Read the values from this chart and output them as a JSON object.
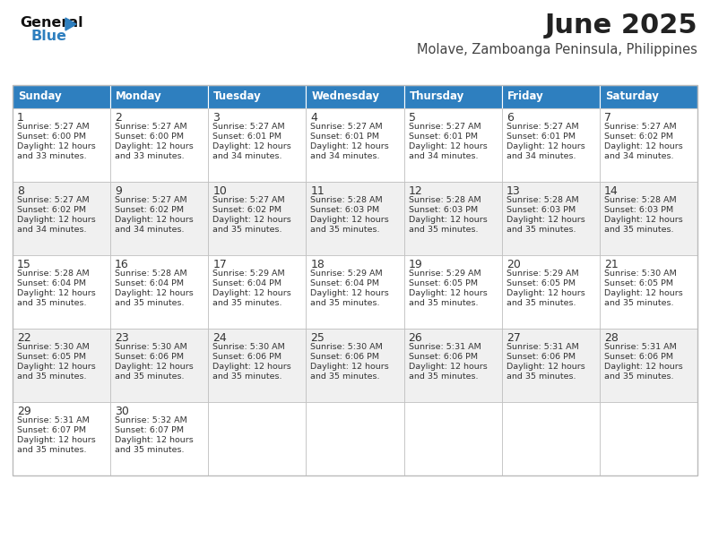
{
  "title": "June 2025",
  "subtitle": "Molave, Zamboanga Peninsula, Philippines",
  "header_color": "#2E7FBF",
  "header_text_color": "#FFFFFF",
  "cell_bg_even": "#F0F0F0",
  "cell_bg_odd": "#FFFFFF",
  "border_color": "#BBBBBB",
  "text_color": "#333333",
  "days_of_week": [
    "Sunday",
    "Monday",
    "Tuesday",
    "Wednesday",
    "Thursday",
    "Friday",
    "Saturday"
  ],
  "weeks": [
    [
      {
        "day": "1",
        "sunrise": "5:27 AM",
        "sunset": "6:00 PM",
        "daylight_suffix": "33 minutes."
      },
      {
        "day": "2",
        "sunrise": "5:27 AM",
        "sunset": "6:00 PM",
        "daylight_suffix": "33 minutes."
      },
      {
        "day": "3",
        "sunrise": "5:27 AM",
        "sunset": "6:01 PM",
        "daylight_suffix": "34 minutes."
      },
      {
        "day": "4",
        "sunrise": "5:27 AM",
        "sunset": "6:01 PM",
        "daylight_suffix": "34 minutes."
      },
      {
        "day": "5",
        "sunrise": "5:27 AM",
        "sunset": "6:01 PM",
        "daylight_suffix": "34 minutes."
      },
      {
        "day": "6",
        "sunrise": "5:27 AM",
        "sunset": "6:01 PM",
        "daylight_suffix": "34 minutes."
      },
      {
        "day": "7",
        "sunrise": "5:27 AM",
        "sunset": "6:02 PM",
        "daylight_suffix": "34 minutes."
      }
    ],
    [
      {
        "day": "8",
        "sunrise": "5:27 AM",
        "sunset": "6:02 PM",
        "daylight_suffix": "34 minutes."
      },
      {
        "day": "9",
        "sunrise": "5:27 AM",
        "sunset": "6:02 PM",
        "daylight_suffix": "34 minutes."
      },
      {
        "day": "10",
        "sunrise": "5:27 AM",
        "sunset": "6:02 PM",
        "daylight_suffix": "35 minutes."
      },
      {
        "day": "11",
        "sunrise": "5:28 AM",
        "sunset": "6:03 PM",
        "daylight_suffix": "35 minutes."
      },
      {
        "day": "12",
        "sunrise": "5:28 AM",
        "sunset": "6:03 PM",
        "daylight_suffix": "35 minutes."
      },
      {
        "day": "13",
        "sunrise": "5:28 AM",
        "sunset": "6:03 PM",
        "daylight_suffix": "35 minutes."
      },
      {
        "day": "14",
        "sunrise": "5:28 AM",
        "sunset": "6:03 PM",
        "daylight_suffix": "35 minutes."
      }
    ],
    [
      {
        "day": "15",
        "sunrise": "5:28 AM",
        "sunset": "6:04 PM",
        "daylight_suffix": "35 minutes."
      },
      {
        "day": "16",
        "sunrise": "5:28 AM",
        "sunset": "6:04 PM",
        "daylight_suffix": "35 minutes."
      },
      {
        "day": "17",
        "sunrise": "5:29 AM",
        "sunset": "6:04 PM",
        "daylight_suffix": "35 minutes."
      },
      {
        "day": "18",
        "sunrise": "5:29 AM",
        "sunset": "6:04 PM",
        "daylight_suffix": "35 minutes."
      },
      {
        "day": "19",
        "sunrise": "5:29 AM",
        "sunset": "6:05 PM",
        "daylight_suffix": "35 minutes."
      },
      {
        "day": "20",
        "sunrise": "5:29 AM",
        "sunset": "6:05 PM",
        "daylight_suffix": "35 minutes."
      },
      {
        "day": "21",
        "sunrise": "5:30 AM",
        "sunset": "6:05 PM",
        "daylight_suffix": "35 minutes."
      }
    ],
    [
      {
        "day": "22",
        "sunrise": "5:30 AM",
        "sunset": "6:05 PM",
        "daylight_suffix": "35 minutes."
      },
      {
        "day": "23",
        "sunrise": "5:30 AM",
        "sunset": "6:06 PM",
        "daylight_suffix": "35 minutes."
      },
      {
        "day": "24",
        "sunrise": "5:30 AM",
        "sunset": "6:06 PM",
        "daylight_suffix": "35 minutes."
      },
      {
        "day": "25",
        "sunrise": "5:30 AM",
        "sunset": "6:06 PM",
        "daylight_suffix": "35 minutes."
      },
      {
        "day": "26",
        "sunrise": "5:31 AM",
        "sunset": "6:06 PM",
        "daylight_suffix": "35 minutes."
      },
      {
        "day": "27",
        "sunrise": "5:31 AM",
        "sunset": "6:06 PM",
        "daylight_suffix": "35 minutes."
      },
      {
        "day": "28",
        "sunrise": "5:31 AM",
        "sunset": "6:06 PM",
        "daylight_suffix": "35 minutes."
      }
    ],
    [
      {
        "day": "29",
        "sunrise": "5:31 AM",
        "sunset": "6:07 PM",
        "daylight_suffix": "35 minutes."
      },
      {
        "day": "30",
        "sunrise": "5:32 AM",
        "sunset": "6:07 PM",
        "daylight_suffix": "35 minutes."
      },
      null,
      null,
      null,
      null,
      null
    ]
  ]
}
